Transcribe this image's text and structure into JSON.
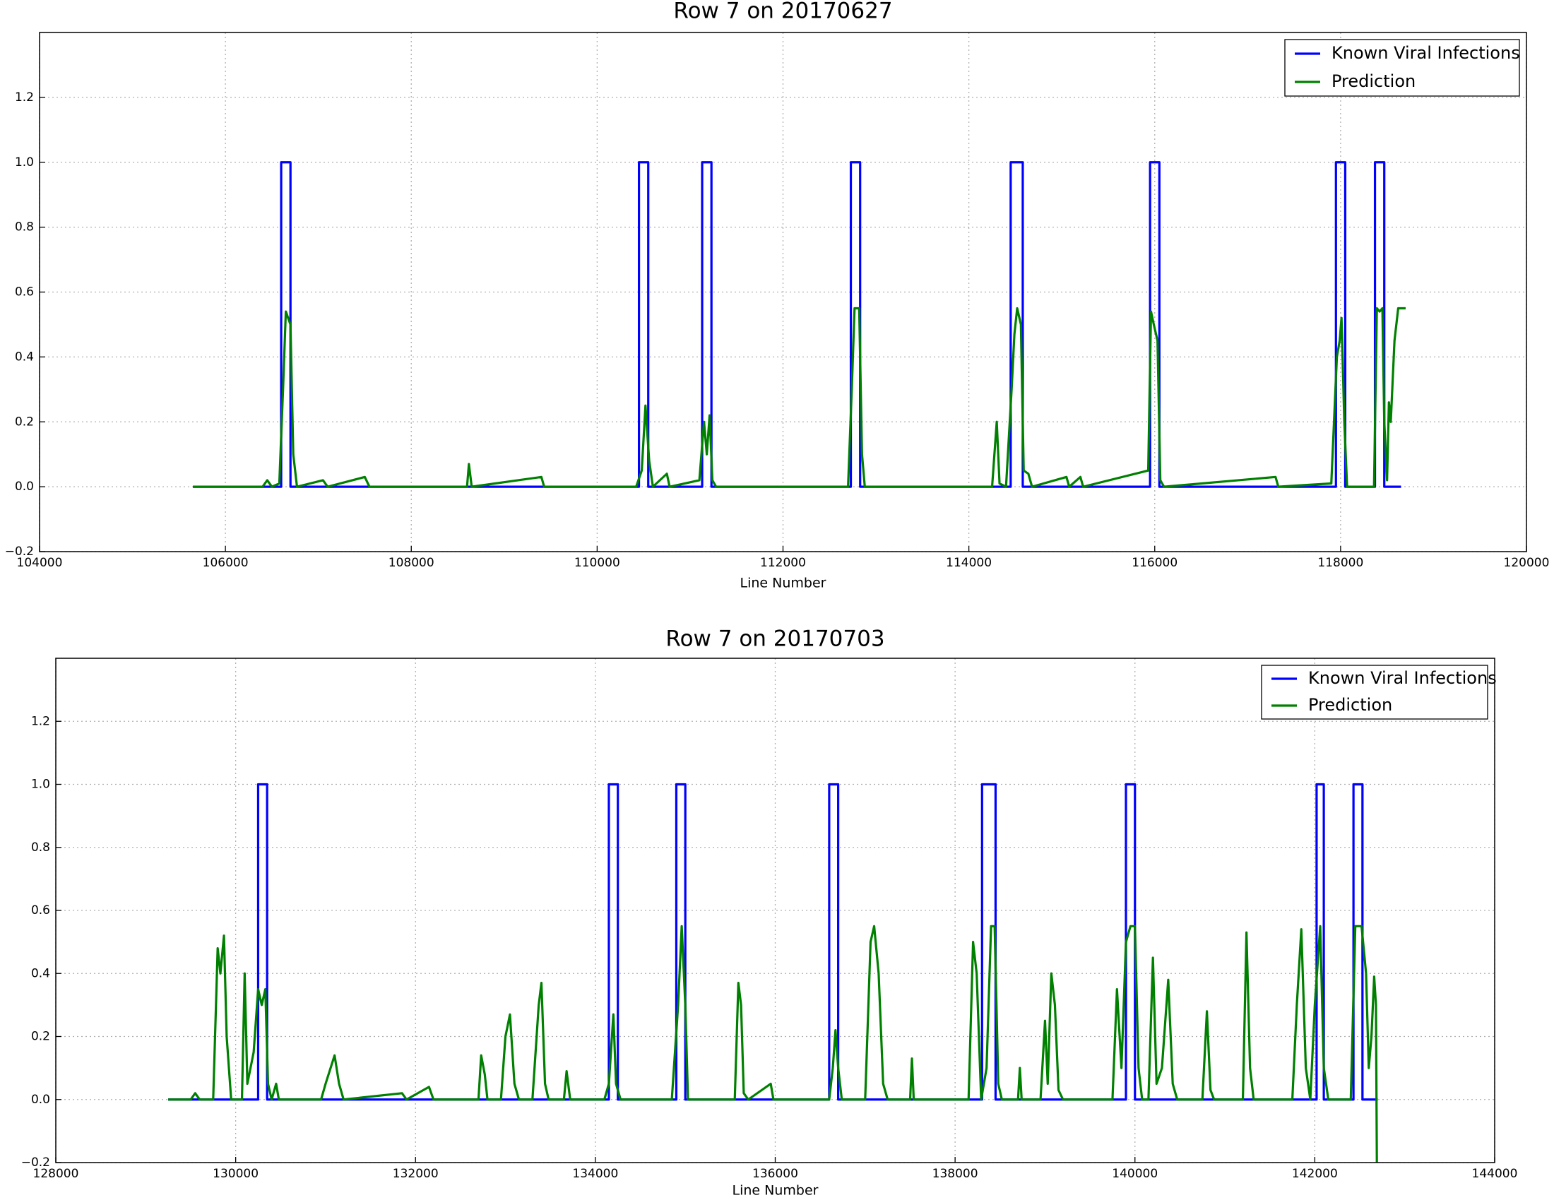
{
  "chart_data": [
    {
      "type": "line",
      "title": "Row 7 on 20170627",
      "x_label": "Line Number",
      "xlim": [
        104000,
        120000
      ],
      "xticks": [
        104000,
        106000,
        108000,
        110000,
        112000,
        114000,
        116000,
        118000,
        120000
      ],
      "ylim": [
        -0.2,
        1.4
      ],
      "yticks": [
        {
          "value": -0.2,
          "label": "−0.2"
        },
        {
          "value": 0,
          "label": "0.0"
        },
        {
          "value": 0.2,
          "label": "0.2"
        },
        {
          "value": 0.4,
          "label": "0.4"
        },
        {
          "value": 0.6,
          "label": "0.6"
        },
        {
          "value": 0.8,
          "label": "0.8"
        },
        {
          "value": 1,
          "label": "1.0"
        },
        {
          "value": 1.2,
          "label": "1.2"
        }
      ],
      "grid": true,
      "legend": "upper right",
      "series": [
        {
          "name": "Known Viral Infections",
          "color": "#0000ff",
          "x": [
            105650,
            106600,
            106600,
            106700,
            106700,
            110450,
            110450,
            110550,
            110550,
            111130,
            111130,
            111230,
            111230,
            112730,
            112730,
            112830,
            112830,
            114450,
            114450,
            114580,
            114580,
            115950,
            115950,
            116050,
            116050,
            117950,
            117950,
            118050,
            118050,
            118370,
            118370,
            118470,
            118470,
            118650
          ],
          "values": [
            0,
            0,
            1,
            1,
            0,
            0,
            1,
            1,
            0,
            0,
            1,
            1,
            0,
            0,
            1,
            1,
            0,
            0,
            1,
            1,
            0,
            0,
            1,
            1,
            0,
            0,
            1,
            1,
            0,
            0,
            1,
            1,
            0,
            0
          ]
        },
        {
          "name": "Prediction",
          "color": "#008000",
          "x": [
            105650,
            106400,
            106450,
            106500,
            106580,
            106620,
            106650,
            106700,
            106730,
            106770,
            107050,
            107100,
            107500,
            107550,
            108600,
            108620,
            108650,
            109400,
            109430,
            110420,
            110480,
            110520,
            110560,
            110600,
            110750,
            110780,
            111100,
            111150,
            111180,
            111210,
            111240,
            111280,
            112700,
            112740,
            112770,
            112820,
            112850,
            112880,
            114250,
            114300,
            114330,
            114400,
            114460,
            114490,
            114520,
            114560,
            114590,
            114640,
            114680,
            115050,
            115080,
            115200,
            115230,
            115930,
            115960,
            115990,
            116030,
            116060,
            116100,
            117300,
            117330,
            117900,
            117960,
            117990,
            118010,
            118040,
            118070,
            118360,
            118390,
            118420,
            118450,
            118470,
            118500,
            118520,
            118540,
            118580,
            118620,
            118700
          ],
          "values": [
            0,
            0,
            0.02,
            0,
            0.01,
            0.3,
            0.54,
            0.5,
            0.1,
            0,
            0.02,
            0,
            0.03,
            0,
            0,
            0.07,
            0,
            0.03,
            0,
            0,
            0.05,
            0.25,
            0.08,
            0,
            0.04,
            0,
            0.02,
            0.2,
            0.1,
            0.22,
            0.02,
            0,
            0,
            0.3,
            0.55,
            0.55,
            0.1,
            0,
            0,
            0.2,
            0.01,
            0,
            0.3,
            0.47,
            0.55,
            0.5,
            0.05,
            0.04,
            0,
            0.03,
            0,
            0.03,
            0,
            0.05,
            0.54,
            0.5,
            0.45,
            0.02,
            0,
            0.03,
            0,
            0.01,
            0.4,
            0.45,
            0.52,
            0.2,
            0,
            0,
            0.55,
            0.54,
            0.55,
            0.2,
            0.02,
            0.26,
            0.2,
            0.45,
            0.55,
            0.55
          ]
        }
      ]
    },
    {
      "type": "line",
      "title": "Row 7 on 20170703",
      "x_label": "Line Number",
      "xlim": [
        128000,
        144000
      ],
      "xticks": [
        128000,
        130000,
        132000,
        134000,
        136000,
        138000,
        140000,
        142000,
        144000
      ],
      "ylim": [
        -0.2,
        1.4
      ],
      "yticks": [
        {
          "value": -0.2,
          "label": "−0.2"
        },
        {
          "value": 0,
          "label": "0.0"
        },
        {
          "value": 0.2,
          "label": "0.2"
        },
        {
          "value": 0.4,
          "label": "0.4"
        },
        {
          "value": 0.6,
          "label": "0.6"
        },
        {
          "value": 0.8,
          "label": "0.8"
        },
        {
          "value": 1,
          "label": "1.0"
        },
        {
          "value": 1.2,
          "label": "1.2"
        }
      ],
      "grid": true,
      "legend": "upper right",
      "series": [
        {
          "name": "Known Viral Infections",
          "color": "#0000ff",
          "x": [
            129250,
            130250,
            130250,
            130350,
            130350,
            134150,
            134150,
            134250,
            134250,
            134900,
            134900,
            135000,
            135000,
            136600,
            136600,
            136700,
            136700,
            138300,
            138300,
            138450,
            138450,
            139900,
            139900,
            140000,
            140000,
            142020,
            142020,
            142100,
            142100,
            142430,
            142430,
            142530,
            142530,
            142700
          ],
          "values": [
            0,
            0,
            1,
            1,
            0,
            0,
            1,
            1,
            0,
            0,
            1,
            1,
            0,
            0,
            1,
            1,
            0,
            0,
            1,
            1,
            0,
            0,
            1,
            1,
            0,
            0,
            1,
            1,
            0,
            0,
            1,
            1,
            0,
            0
          ]
        },
        {
          "name": "Prediction",
          "color": "#008000",
          "x": [
            129250,
            129500,
            129550,
            129600,
            129750,
            129800,
            129830,
            129870,
            129900,
            129950,
            130070,
            130100,
            130130,
            130200,
            130250,
            130290,
            130330,
            130360,
            130400,
            130450,
            130480,
            130950,
            131000,
            131100,
            131150,
            131200,
            131850,
            131900,
            132150,
            132200,
            132700,
            132730,
            132770,
            132800,
            132950,
            133000,
            133050,
            133100,
            133150,
            133300,
            133370,
            133400,
            133440,
            133480,
            133650,
            133680,
            133720,
            134100,
            134150,
            134200,
            134230,
            134280,
            134850,
            134920,
            134960,
            135000,
            135030,
            135550,
            135590,
            135620,
            135650,
            135700,
            135950,
            135980,
            136600,
            136640,
            136670,
            136700,
            136740,
            137000,
            137060,
            137100,
            137150,
            137200,
            137250,
            137500,
            137520,
            137540,
            138150,
            138200,
            138240,
            138290,
            138350,
            138400,
            138440,
            138480,
            138520,
            138700,
            138720,
            138740,
            138950,
            139000,
            139030,
            139070,
            139110,
            139150,
            139200,
            139750,
            139800,
            139850,
            139900,
            139950,
            140000,
            140040,
            140080,
            140150,
            140200,
            140240,
            140300,
            140370,
            140420,
            140470,
            140750,
            140800,
            140840,
            140880,
            141200,
            141240,
            141280,
            141320,
            141750,
            141800,
            141850,
            141900,
            141950,
            142000,
            142060,
            142100,
            142150,
            142400,
            142450,
            142520,
            142570,
            142600,
            142630,
            142660,
            142680,
            142690
          ],
          "values": [
            0,
            0,
            0.02,
            0,
            0,
            0.48,
            0.4,
            0.52,
            0.2,
            0,
            0,
            0.4,
            0.05,
            0.15,
            0.35,
            0.3,
            0.35,
            0.05,
            0,
            0.05,
            0,
            0,
            0.05,
            0.14,
            0.05,
            0,
            0.02,
            0,
            0.04,
            0,
            0,
            0.14,
            0.08,
            0,
            0,
            0.2,
            0.27,
            0.05,
            0,
            0,
            0.3,
            0.37,
            0.05,
            0,
            0,
            0.09,
            0,
            0,
            0.05,
            0.27,
            0.05,
            0,
            0,
            0.3,
            0.55,
            0.3,
            0,
            0,
            0.37,
            0.3,
            0.02,
            0,
            0.05,
            0,
            0,
            0.1,
            0.22,
            0.1,
            0,
            0,
            0.5,
            0.55,
            0.4,
            0.05,
            0,
            0,
            0.13,
            0,
            0,
            0.5,
            0.4,
            0,
            0.1,
            0.55,
            0.55,
            0.05,
            0,
            0,
            0.1,
            0,
            0,
            0.25,
            0.05,
            0.4,
            0.3,
            0.03,
            0,
            0,
            0.35,
            0.1,
            0.5,
            0.55,
            0.55,
            0.1,
            0,
            0,
            0.45,
            0.05,
            0.1,
            0.38,
            0.05,
            0,
            0,
            0.28,
            0.03,
            0,
            0,
            0.53,
            0.1,
            0,
            0,
            0.3,
            0.54,
            0.1,
            0,
            0.3,
            0.55,
            0.1,
            0,
            0,
            0.55,
            0.55,
            0.4,
            0.1,
            0.2,
            0.39,
            0.3,
            -0.2
          ]
        }
      ]
    }
  ]
}
